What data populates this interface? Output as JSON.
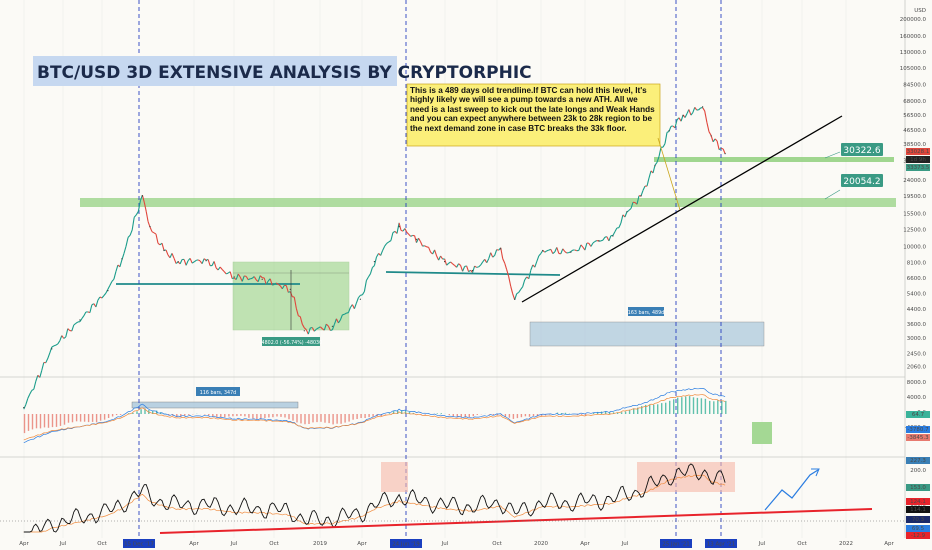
{
  "chart_data": {
    "type": "line",
    "title": "BTC/USD 3D EXTENSIVE ANALYSIS BY CRYPTORPHIC",
    "currency_label": "USD",
    "note": "This is a 489 days old trendline.If BTC can hold this level, It's highly likely we will see a pump towards a new ATH. All we need is a last sweep to kick out the late longs and Weak Hands and you can expect anywhere between 23k to 28k region to be the next demand zone in case BTC breaks the 33k floor.",
    "price_axis": {
      "scale": "log",
      "ticks": [
        "200000.0",
        "160000.0",
        "130000.0",
        "105000.0",
        "84500.0",
        "68000.0",
        "56500.0",
        "46500.0",
        "38500.0",
        "31000.0",
        "24000.0",
        "19500.0",
        "15500.0",
        "12500.0",
        "10000.0",
        "8100.0",
        "6600.0",
        "5400.0",
        "4400.0",
        "3600.0",
        "3000.0",
        "2450.0",
        "2060.0"
      ],
      "marker_labels": [
        "33028.1",
        "1d 9h",
        "33373.5"
      ]
    },
    "x_axis": {
      "ticks": [
        "Apr",
        "Jul",
        "Oct",
        "Apr",
        "Jul",
        "Oct",
        "2019",
        "Apr",
        "Jul",
        "Oct",
        "2020",
        "Apr",
        "Jul",
        "Oct",
        "Apr",
        "Jul",
        "Oct",
        "2022",
        "Apr"
      ],
      "highlighted": [
        "15 Dec '17",
        "24 Jun '19",
        "25 Jan '21",
        "13 Apr '21"
      ]
    },
    "price_series": {
      "name": "BTC/USD",
      "x": [
        "2017-04",
        "2017-06",
        "2017-08",
        "2017-10",
        "2017-11",
        "2017-12-15",
        "2018-01",
        "2018-02",
        "2018-03",
        "2018-05",
        "2018-07",
        "2018-09",
        "2018-11",
        "2018-12",
        "2019-02",
        "2019-04",
        "2019-05",
        "2019-06-24",
        "2019-08",
        "2019-10",
        "2019-12",
        "2020-02",
        "2020-03",
        "2020-05",
        "2020-07",
        "2020-09",
        "2020-10",
        "2020-11",
        "2020-12",
        "2021-01",
        "2021-02",
        "2021-03",
        "2021-04-13",
        "2021-05",
        "2021-06"
      ],
      "y": [
        1200,
        2600,
        3800,
        5600,
        8500,
        19500,
        13000,
        9500,
        8200,
        8300,
        6700,
        6500,
        5700,
        3300,
        3500,
        5000,
        8200,
        13000,
        11000,
        8200,
        7300,
        9700,
        5000,
        9500,
        9300,
        10800,
        11500,
        15800,
        19500,
        29000,
        46000,
        56000,
        63000,
        43000,
        34000
      ]
    },
    "horizontal_levels": [
      {
        "label": "30322.6",
        "value": 30322.6
      },
      {
        "label": "20054.2",
        "value": 20054.2
      }
    ],
    "ranges": [
      {
        "label": "-4802.0 (-56.74%) -48030"
      },
      {
        "label": "163 bars, 489d"
      },
      {
        "label": "116 bars, 347d"
      }
    ],
    "macd_axis": {
      "ticks": [
        "8000.0",
        "4000.0",
        "0.0",
        "-4000.0"
      ],
      "markers": [
        "64.7",
        "-3780.7",
        "-3845.3"
      ]
    },
    "rsi_axis": {
      "ticks": [
        "200.0",
        "150.0",
        "100.0",
        "50.0"
      ],
      "markers": [
        "227.3",
        "153.0",
        "124.1",
        "114.1",
        "70.3",
        "69.5",
        "-12.9"
      ]
    }
  },
  "colors": {
    "price_line": "#e0463c",
    "price_line_alt": "#1a9c8a",
    "green_zone": "#8fcf7c",
    "teal_label": "#3a9a84",
    "trendline": "#000000",
    "vertical_event": "#2a3fbf",
    "note_bg": "#fbef7a",
    "title_bg": "#c6d8f0",
    "rsi_red": "#e8232b",
    "projection": "#2a7de1"
  }
}
